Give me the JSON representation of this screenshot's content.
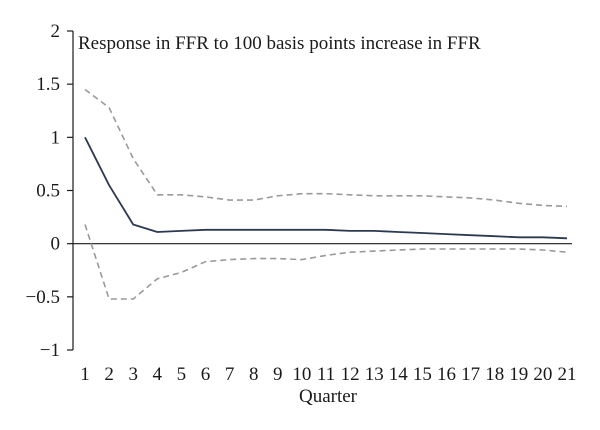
{
  "chart_data": {
    "type": "line",
    "title": "Response in FFR to 100 basis points increase in FFR",
    "xlabel": "Quarter",
    "ylabel": "",
    "categories": [
      "1",
      "2",
      "3",
      "4",
      "5",
      "6",
      "7",
      "8",
      "9",
      "10",
      "11",
      "12",
      "13",
      "14",
      "15",
      "16",
      "17",
      "18",
      "19",
      "20",
      "21"
    ],
    "ylim": [
      -1,
      2
    ],
    "yticks": [
      "2",
      "1.5",
      "1",
      "0.5",
      "0",
      "−0.5",
      "−1"
    ],
    "ytick_values": [
      2,
      1.5,
      1,
      0.5,
      0,
      -0.5,
      -1
    ],
    "grid": false,
    "legend": "none",
    "series": [
      {
        "style": "solid",
        "color": "#2b3a52",
        "values": [
          1.0,
          0.55,
          0.18,
          0.11,
          0.12,
          0.13,
          0.13,
          0.13,
          0.13,
          0.13,
          0.13,
          0.12,
          0.12,
          0.11,
          0.1,
          0.09,
          0.08,
          0.07,
          0.06,
          0.06,
          0.05
        ]
      },
      {
        "style": "dashed",
        "color": "#9a9a9a",
        "values": [
          1.45,
          1.28,
          0.8,
          0.46,
          0.46,
          0.44,
          0.41,
          0.41,
          0.45,
          0.47,
          0.47,
          0.46,
          0.45,
          0.45,
          0.45,
          0.44,
          0.43,
          0.41,
          0.38,
          0.36,
          0.35
        ]
      },
      {
        "style": "dashed",
        "color": "#9a9a9a",
        "values": [
          0.18,
          -0.52,
          -0.52,
          -0.33,
          -0.27,
          -0.17,
          -0.15,
          -0.14,
          -0.14,
          -0.15,
          -0.11,
          -0.08,
          -0.07,
          -0.06,
          -0.05,
          -0.05,
          -0.05,
          -0.05,
          -0.05,
          -0.06,
          -0.08
        ]
      }
    ]
  }
}
